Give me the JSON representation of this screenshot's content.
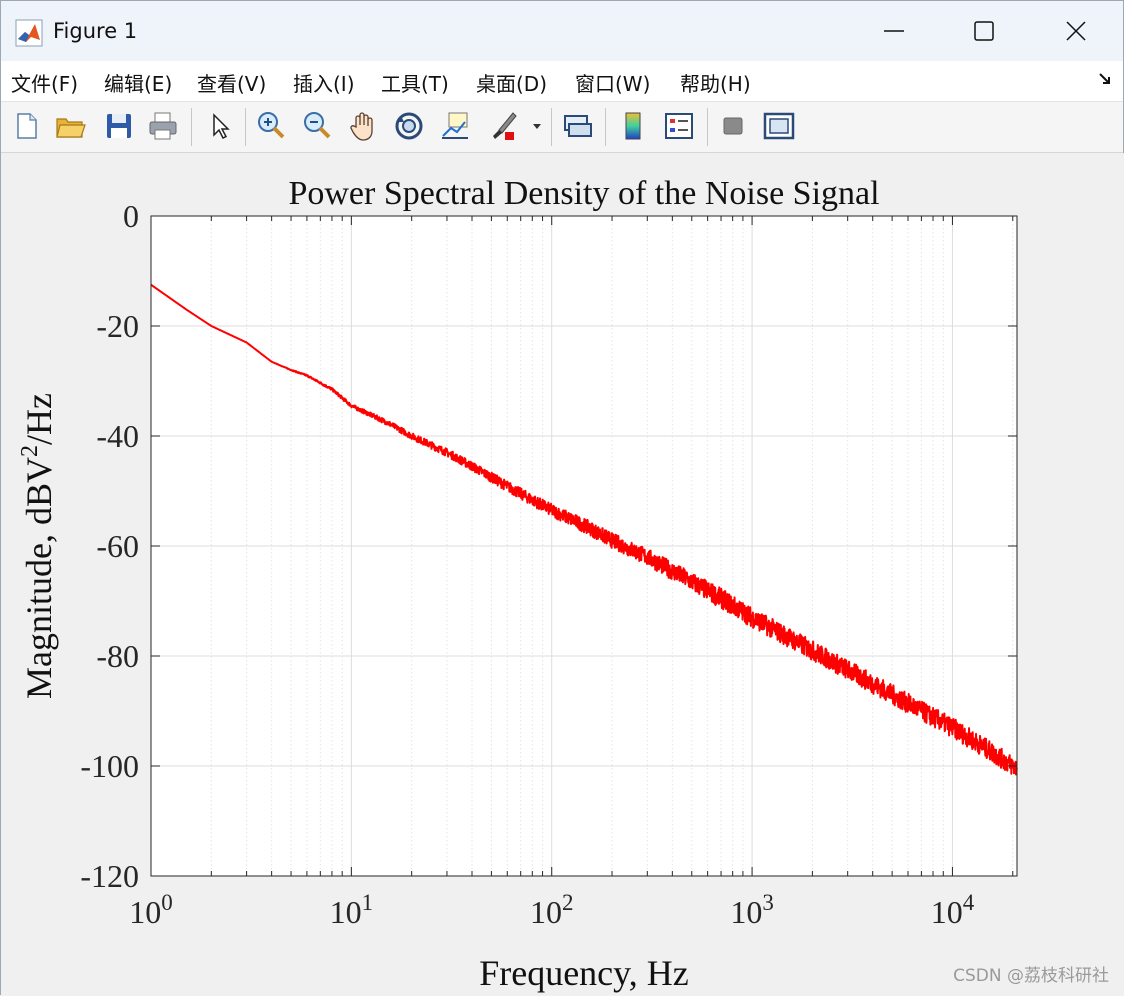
{
  "window": {
    "title": "Figure 1"
  },
  "menu": {
    "items": [
      "文件(F)",
      "编辑(E)",
      "查看(V)",
      "插入(I)",
      "工具(T)",
      "桌面(D)",
      "窗口(W)",
      "帮助(H)"
    ]
  },
  "toolbar": {
    "icons": [
      "new-figure-icon",
      "open-file-icon",
      "save-icon",
      "print-icon",
      "pointer-icon",
      "zoom-in-icon",
      "zoom-out-icon",
      "pan-hand-icon",
      "rotate-3d-icon",
      "data-cursor-icon",
      "brush-icon",
      "brush-dropdown-icon",
      "link-plot-icon",
      "colorbar-icon",
      "legend-icon",
      "hide-plot-tools-icon",
      "show-plot-tools-icon"
    ]
  },
  "watermark": "CSDN @荔枝科研社",
  "colors": {
    "line": "#ff0000",
    "grid": "#dcdcdc",
    "axes_bg": "#ffffff",
    "figure_bg": "#f0f0f0"
  },
  "chart_data": {
    "type": "line",
    "title": "Power Spectral Density of the Noise Signal",
    "xlabel": "Frequency, Hz",
    "ylabel_parts": [
      "Magnitude, dBV",
      "2",
      "/Hz"
    ],
    "xscale": "log",
    "xlim": [
      1,
      21000
    ],
    "ylim": [
      -120,
      0
    ],
    "xticks": [
      1,
      10,
      100,
      1000,
      10000
    ],
    "xtick_exponents": [
      "0",
      "1",
      "2",
      "3",
      "4"
    ],
    "xtick_base": "10",
    "yticks": [
      0,
      -20,
      -40,
      -60,
      -80,
      -100,
      -120
    ],
    "ytick_labels": [
      "0",
      "-20",
      "-40",
      "-60",
      "-80",
      "-100",
      "-120"
    ],
    "grid": true,
    "minor_grid": true,
    "series": [
      {
        "color": "#ff0000",
        "x": [
          1,
          1.5,
          2,
          3,
          4,
          5,
          6,
          8,
          10,
          15,
          20,
          30,
          40,
          50,
          70,
          100,
          150,
          200,
          300,
          500,
          700,
          1000,
          1500,
          2000,
          3000,
          5000,
          7000,
          10000,
          15000,
          21000
        ],
        "y": [
          -12.5,
          -17,
          -20,
          -23,
          -26.5,
          -28,
          -29,
          -31.5,
          -34.5,
          -37.5,
          -40,
          -43,
          -45.5,
          -47.5,
          -50.5,
          -53.5,
          -56.5,
          -59,
          -62,
          -66.5,
          -69.5,
          -73,
          -76.5,
          -79,
          -82.5,
          -87,
          -90,
          -93,
          -97,
          -100.5
        ],
        "noise_band": 1.8
      }
    ]
  }
}
